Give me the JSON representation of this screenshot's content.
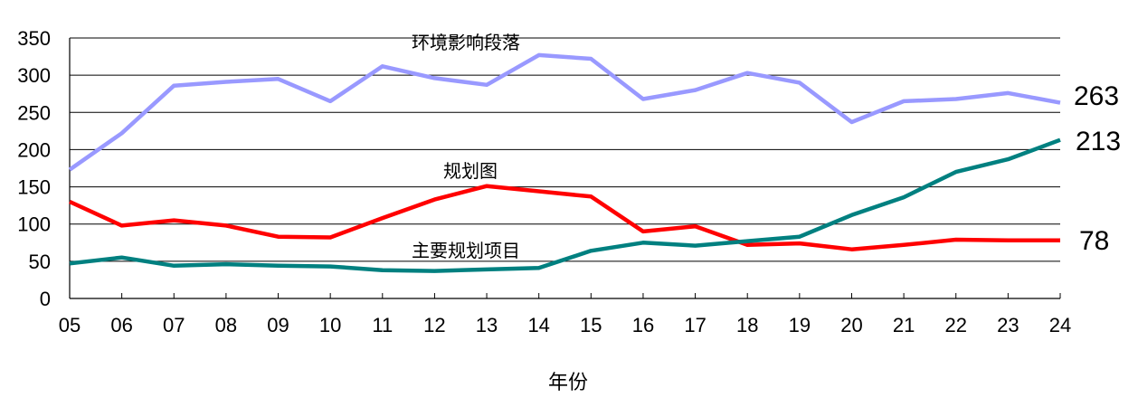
{
  "chart_data": {
    "type": "line",
    "title": "",
    "xlabel": "年份",
    "ylabel": "",
    "ylim": [
      0,
      350
    ],
    "yticks": [
      0,
      50,
      100,
      150,
      200,
      250,
      300,
      350
    ],
    "grid": true,
    "legend_position": "inline labels",
    "categories": [
      "05",
      "06",
      "07",
      "08",
      "09",
      "10",
      "11",
      "12",
      "13",
      "14",
      "15",
      "16",
      "17",
      "18",
      "19",
      "20",
      "21",
      "22",
      "23",
      "24"
    ],
    "series": [
      {
        "name": "环境影响段落",
        "color": "#9999ff",
        "values": [
          173,
          222,
          286,
          291,
          295,
          265,
          312,
          296,
          287,
          327,
          322,
          268,
          280,
          303,
          290,
          237,
          265,
          268,
          276,
          263
        ],
        "end_label": "263"
      },
      {
        "name": "规划图",
        "color": "#ff0000",
        "values": [
          130,
          98,
          105,
          98,
          83,
          82,
          108,
          133,
          151,
          144,
          137,
          90,
          97,
          72,
          74,
          66,
          72,
          79,
          78,
          78
        ],
        "end_label": "78"
      },
      {
        "name": "主要规划项目",
        "color": "#008080",
        "values": [
          47,
          55,
          44,
          46,
          44,
          43,
          38,
          37,
          39,
          41,
          64,
          75,
          71,
          77,
          83,
          112,
          136,
          170,
          187,
          213
        ],
        "end_label": "213"
      }
    ]
  }
}
